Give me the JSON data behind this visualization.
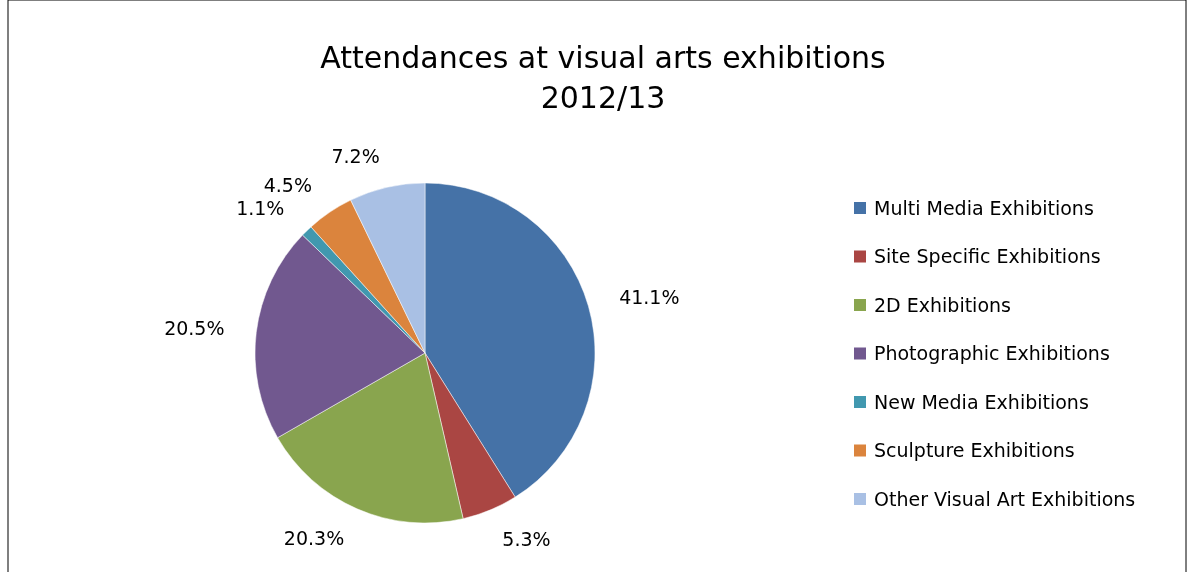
{
  "chart_data": {
    "type": "pie",
    "title": "Attendances at visual arts exhibitions\n2012/13",
    "categories": [
      "Multi Media Exhibitions",
      "Site Specific Exhibitions",
      "2D Exhibitions",
      "Photographic Exhibitions",
      "New Media Exhibitions",
      "Sculpture Exhibitions",
      "Other Visual Art Exhibitions"
    ],
    "values": [
      41.1,
      5.3,
      20.3,
      20.5,
      1.1,
      4.5,
      7.2
    ],
    "colors": [
      "#4572a7",
      "#aa4643",
      "#89a54e",
      "#71588f",
      "#4198af",
      "#db843d",
      "#a9c0e4"
    ],
    "value_labels": [
      "41.1%",
      "5.3%",
      "20.3%",
      "20.5%",
      "1.1%",
      "4.5%",
      "7.2%"
    ],
    "legend": "right"
  }
}
